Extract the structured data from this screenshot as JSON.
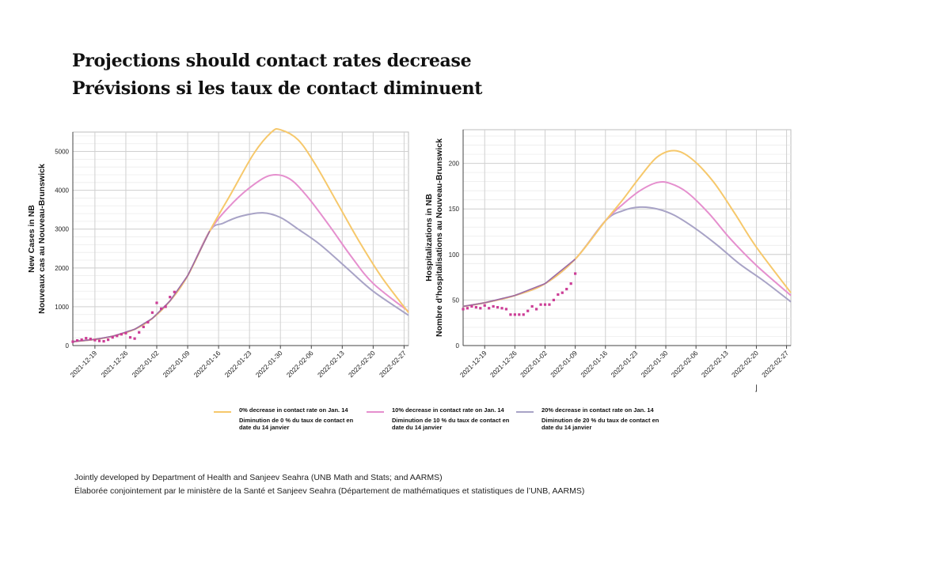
{
  "title_en": "Projections should contact rates decrease",
  "title_fr": "Prévisions si les taux de contact diminuent",
  "colors": {
    "s0": "#f6c86b",
    "s10": "#e58fce",
    "s20": "#a8a3c6",
    "observed": "#cc3d96"
  },
  "legend": [
    {
      "label_en": "0% decrease in contact rate on Jan. 14",
      "label_fr": "Diminution de 0 % du taux de contact en date du 14 janvier"
    },
    {
      "label_en": "10% decrease in contact rate on Jan. 14",
      "label_fr": "Diminution de 10 % du taux de contact en date du 14 janvier"
    },
    {
      "label_en": "20% decrease in contact rate on Jan. 14",
      "label_fr": "Diminution de 20 % du taux de contact en date du 14 janvier"
    }
  ],
  "credit_en": "Jointly developed by Department of Health and Sanjeev Seahra (UNB Math and Stats; and AARMS)",
  "credit_fr": "Élaborée conjointement par le ministère de la Santé et Sanjeev Seahra (Département de mathématiques et statistiques de l’UNB, AARMS)",
  "corner_mark": "⌋",
  "chart_data": [
    {
      "type": "line",
      "ylabel": "New Cases in NB",
      "ylabel2": "Nouveaux cas au Nouveau-Brunswick",
      "xlim": [
        "2021-12-14",
        "2022-02-28"
      ],
      "ylim": [
        0,
        5500
      ],
      "yticks": [
        0,
        1000,
        2000,
        3000,
        4000,
        5000
      ],
      "xticks": [
        "2021-12-19",
        "2021-12-26",
        "2022-01-02",
        "2022-01-09",
        "2022-01-16",
        "2022-01-23",
        "2022-01-30",
        "2022-02-06",
        "2022-02-13",
        "2022-02-20",
        "2022-02-27"
      ],
      "grid": true,
      "series": [
        {
          "name": "0% decrease in contact rate on Jan. 14",
          "x": [
            "2021-12-14",
            "2021-12-19",
            "2021-12-23",
            "2021-12-28",
            "2022-01-01",
            "2022-01-05",
            "2022-01-09",
            "2022-01-14",
            "2022-01-19",
            "2022-01-24",
            "2022-01-28",
            "2022-01-30",
            "2022-02-03",
            "2022-02-07",
            "2022-02-12",
            "2022-02-17",
            "2022-02-22",
            "2022-02-28"
          ],
          "y": [
            100,
            160,
            240,
            420,
            700,
            1150,
            1800,
            2950,
            3950,
            4950,
            5500,
            5560,
            5300,
            4650,
            3650,
            2650,
            1750,
            850
          ]
        },
        {
          "name": "10% decrease in contact rate on Jan. 14",
          "x": [
            "2021-12-14",
            "2021-12-19",
            "2021-12-23",
            "2021-12-28",
            "2022-01-01",
            "2022-01-05",
            "2022-01-09",
            "2022-01-14",
            "2022-01-19",
            "2022-01-24",
            "2022-01-28",
            "2022-02-01",
            "2022-02-05",
            "2022-02-10",
            "2022-02-15",
            "2022-02-20",
            "2022-02-28"
          ],
          "y": [
            100,
            160,
            240,
            420,
            700,
            1150,
            1800,
            2950,
            3650,
            4150,
            4390,
            4300,
            3850,
            3100,
            2300,
            1600,
            880
          ]
        },
        {
          "name": "20% decrease in contact rate on Jan. 14",
          "x": [
            "2021-12-14",
            "2021-12-19",
            "2021-12-23",
            "2021-12-28",
            "2022-01-01",
            "2022-01-05",
            "2022-01-09",
            "2022-01-14",
            "2022-01-17",
            "2022-01-21",
            "2022-01-26",
            "2022-01-30",
            "2022-02-03",
            "2022-02-08",
            "2022-02-14",
            "2022-02-20",
            "2022-02-28"
          ],
          "y": [
            100,
            160,
            240,
            420,
            700,
            1150,
            1800,
            2950,
            3150,
            3330,
            3420,
            3300,
            3000,
            2600,
            2000,
            1400,
            780
          ]
        }
      ],
      "observed": {
        "x": [
          "2021-12-14",
          "2021-12-15",
          "2021-12-16",
          "2021-12-17",
          "2021-12-18",
          "2021-12-19",
          "2021-12-20",
          "2021-12-21",
          "2021-12-22",
          "2021-12-23",
          "2021-12-24",
          "2021-12-25",
          "2021-12-26",
          "2021-12-27",
          "2021-12-28",
          "2021-12-29",
          "2021-12-30",
          "2021-12-31",
          "2022-01-01",
          "2022-01-02",
          "2022-01-03",
          "2022-01-04",
          "2022-01-05",
          "2022-01-06"
        ],
        "y": [
          100,
          130,
          150,
          190,
          170,
          140,
          120,
          110,
          150,
          210,
          250,
          290,
          320,
          210,
          180,
          340,
          480,
          600,
          850,
          1100,
          950,
          1000,
          1250,
          1380
        ]
      }
    },
    {
      "type": "line",
      "ylabel": "Hospitalizations in NB",
      "ylabel2": "Nombre d’hospitalisations au Nouveau-Brunswick",
      "xlim": [
        "2021-12-14",
        "2022-02-28"
      ],
      "ylim": [
        0,
        237
      ],
      "yticks": [
        0,
        50,
        100,
        150,
        200
      ],
      "xticks": [
        "2021-12-19",
        "2021-12-26",
        "2022-01-02",
        "2022-01-09",
        "2022-01-16",
        "2022-01-23",
        "2022-01-30",
        "2022-02-06",
        "2022-02-13",
        "2022-02-20",
        "2022-02-27"
      ],
      "grid": true,
      "series": [
        {
          "name": "0% decrease in contact rate on Jan. 14",
          "x": [
            "2021-12-14",
            "2021-12-19",
            "2021-12-26",
            "2022-01-02",
            "2022-01-09",
            "2022-01-16",
            "2022-01-20",
            "2022-01-24",
            "2022-01-28",
            "2022-02-01",
            "2022-02-05",
            "2022-02-10",
            "2022-02-15",
            "2022-02-20",
            "2022-02-28"
          ],
          "y": [
            43,
            47,
            55,
            68,
            95,
            137,
            160,
            185,
            207,
            214,
            205,
            180,
            145,
            108,
            58
          ]
        },
        {
          "name": "10% decrease in contact rate on Jan. 14",
          "x": [
            "2021-12-14",
            "2021-12-19",
            "2021-12-26",
            "2022-01-02",
            "2022-01-09",
            "2022-01-16",
            "2022-01-20",
            "2022-01-24",
            "2022-01-28",
            "2022-01-31",
            "2022-02-04",
            "2022-02-09",
            "2022-02-14",
            "2022-02-20",
            "2022-02-28"
          ],
          "y": [
            43,
            47,
            55,
            68,
            95,
            137,
            155,
            170,
            179,
            178,
            168,
            145,
            117,
            88,
            55
          ]
        },
        {
          "name": "20% decrease in contact rate on Jan. 14",
          "x": [
            "2021-12-14",
            "2021-12-19",
            "2021-12-26",
            "2022-01-02",
            "2022-01-09",
            "2022-01-16",
            "2022-01-20",
            "2022-01-24",
            "2022-01-28",
            "2022-02-01",
            "2022-02-06",
            "2022-02-11",
            "2022-02-16",
            "2022-02-22",
            "2022-02-28"
          ],
          "y": [
            43,
            47,
            55,
            68,
            95,
            137,
            148,
            152,
            150,
            143,
            128,
            110,
            90,
            70,
            48
          ]
        }
      ],
      "observed": {
        "x": [
          "2021-12-14",
          "2021-12-15",
          "2021-12-16",
          "2021-12-17",
          "2021-12-18",
          "2021-12-19",
          "2021-12-20",
          "2021-12-21",
          "2021-12-22",
          "2021-12-23",
          "2021-12-24",
          "2021-12-25",
          "2021-12-26",
          "2021-12-27",
          "2021-12-28",
          "2021-12-29",
          "2021-12-30",
          "2021-12-31",
          "2022-01-01",
          "2022-01-02",
          "2022-01-03",
          "2022-01-04",
          "2022-01-05",
          "2022-01-06",
          "2022-01-07",
          "2022-01-08",
          "2022-01-09"
        ],
        "y": [
          40,
          41,
          43,
          42,
          41,
          44,
          41,
          43,
          42,
          41,
          40,
          34,
          34,
          34,
          34,
          38,
          43,
          40,
          45,
          45,
          45,
          50,
          56,
          58,
          62,
          68,
          79
        ]
      }
    }
  ]
}
